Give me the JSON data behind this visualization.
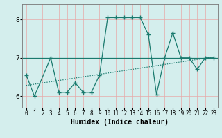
{
  "x": [
    0,
    1,
    3,
    4,
    5,
    6,
    7,
    8,
    9,
    10,
    11,
    12,
    13,
    14,
    15,
    16,
    17,
    18,
    19,
    20,
    21,
    22,
    23
  ],
  "y": [
    6.55,
    6.0,
    7.0,
    6.1,
    6.1,
    6.35,
    6.1,
    6.1,
    6.55,
    8.05,
    8.05,
    8.05,
    8.05,
    8.05,
    7.6,
    6.05,
    7.0,
    7.65,
    7.0,
    7.0,
    6.7,
    7.0,
    7.0
  ],
  "trend_x": [
    0,
    23
  ],
  "trend_y": [
    6.28,
    7.02
  ],
  "line_color": "#1a7a6e",
  "bg_color": "#d4eeed",
  "grid_color_v": "#e8a8a8",
  "grid_color_h": "#e8a8a8",
  "xlabel": "Humidex (Indice chaleur)",
  "ylim": [
    5.7,
    8.4
  ],
  "xlim": [
    -0.5,
    23.5
  ],
  "yticks": [
    6,
    7,
    8
  ],
  "xticks": [
    0,
    1,
    2,
    3,
    4,
    5,
    6,
    7,
    8,
    9,
    10,
    11,
    12,
    13,
    14,
    15,
    16,
    17,
    18,
    19,
    20,
    21,
    22,
    23
  ]
}
